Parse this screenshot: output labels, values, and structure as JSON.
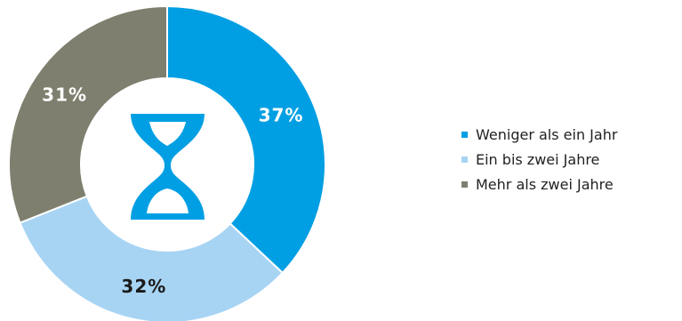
{
  "chart_data": {
    "type": "pie",
    "style": "donut",
    "categories": [
      "Weniger als ein Jahr",
      "Ein bis zwei Jahre",
      "Mehr als zwei Jahre"
    ],
    "values": [
      37,
      32,
      31
    ],
    "labels": [
      "37%",
      "32%",
      "31%"
    ],
    "colors": [
      "#009fe3",
      "#a8d4f4",
      "#7f7f6f"
    ],
    "label_colors": [
      "#ffffff",
      "#1a1a1a",
      "#ffffff"
    ],
    "legend_position": "right",
    "center_icon": "hourglass-icon",
    "icon_color": "#009fe3"
  }
}
